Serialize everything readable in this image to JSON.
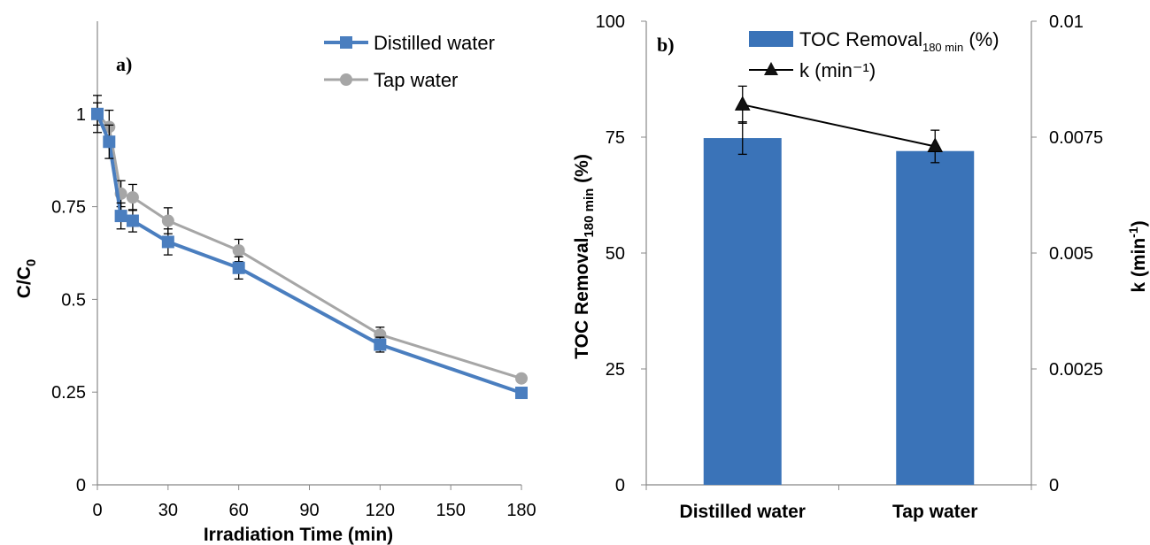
{
  "chart_data": [
    {
      "type": "line",
      "panel_label": "a)",
      "xlabel": "Irradiation Time (min)",
      "ylabel": "C/C",
      "ylabel_sub": "0",
      "xlim": [
        0,
        180
      ],
      "ylim": [
        0,
        1.25
      ],
      "x_ticks": [
        "0",
        "30",
        "60",
        "90",
        "120",
        "150",
        "180"
      ],
      "x_tick_values": [
        0,
        30,
        60,
        90,
        120,
        150,
        180
      ],
      "y_ticks": [
        "0",
        "0.25",
        "0.5",
        "0.75",
        "1"
      ],
      "y_tick_values": [
        0,
        0.25,
        0.5,
        0.75,
        1
      ],
      "legend_position": "top-right",
      "series": [
        {
          "name": "Distilled water",
          "color": "#4a7ebf",
          "marker": "square",
          "x": [
            0,
            5,
            10,
            15,
            30,
            60,
            120,
            180
          ],
          "y": [
            1.0,
            0.925,
            0.725,
            0.712,
            0.655,
            0.585,
            0.378,
            0.248
          ],
          "err": [
            0.05,
            0.045,
            0.035,
            0.03,
            0.035,
            0.03,
            0.02,
            0.005
          ]
        },
        {
          "name": "Tap water",
          "color": "#a6a6a6",
          "marker": "circle",
          "x": [
            0,
            5,
            10,
            15,
            30,
            60,
            120,
            180
          ],
          "y": [
            1.0,
            0.965,
            0.785,
            0.775,
            0.712,
            0.632,
            0.405,
            0.287
          ],
          "err": [
            0.03,
            0.045,
            0.035,
            0.035,
            0.035,
            0.03,
            0.02,
            0.005
          ]
        }
      ]
    },
    {
      "type": "bar",
      "panel_label": "b)",
      "categories": [
        "Distilled water",
        "Tap water"
      ],
      "ylabel_left": "TOC Removal",
      "ylabel_left_sub": "180 min",
      "ylabel_left_suffix": " (%)",
      "ylabel_right": "k (min",
      "ylabel_right_sup": "-1",
      "ylabel_right_suffix": ")",
      "ylim_left": [
        0,
        100
      ],
      "ylim_right": [
        0,
        0.01
      ],
      "y_ticks_left": [
        "0",
        "25",
        "50",
        "75",
        "100"
      ],
      "y_ticks_right": [
        "0",
        "0.0025",
        "0.005",
        "0.0075",
        "0.01"
      ],
      "legend_position": "top-right",
      "series": [
        {
          "name": "TOC Removal",
          "name_sub": "180 min",
          "name_suffix": " (%)",
          "kind": "bar",
          "axis": "left",
          "color": "#3a73b8",
          "values": [
            74.8,
            72.0
          ],
          "err": [
            3.5,
            0
          ]
        },
        {
          "name": "k  (min⁻¹)",
          "kind": "line",
          "axis": "right",
          "color": "#000000",
          "marker": "triangle",
          "values": [
            0.0082,
            0.0073
          ],
          "err": [
            0.0004,
            0.00035
          ]
        }
      ]
    }
  ]
}
